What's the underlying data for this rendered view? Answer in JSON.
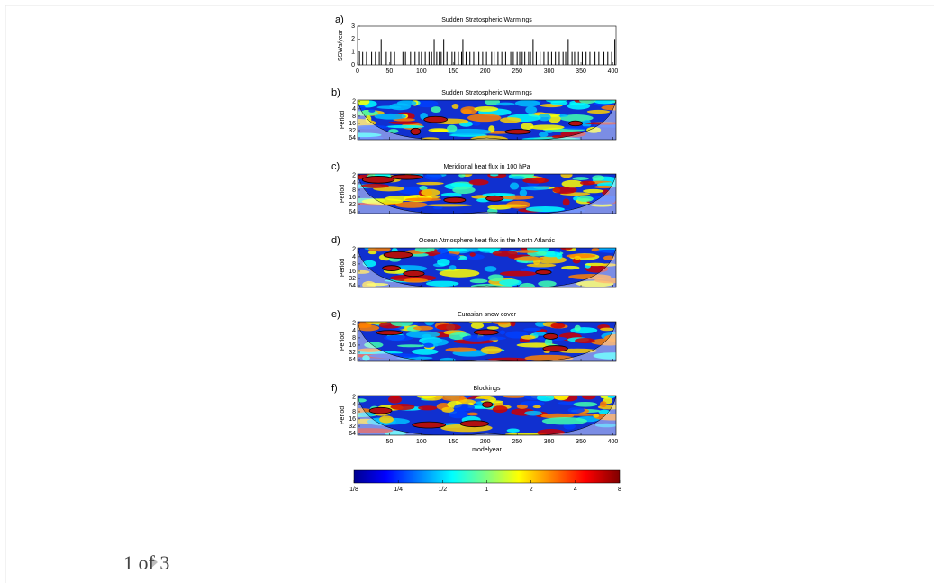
{
  "figure": {
    "panel_a": {
      "label": "a)",
      "title": "Sudden Stratospheric Warmings",
      "ylabel": "SSWs/year",
      "xlim": [
        0,
        405
      ],
      "ylim": [
        0,
        3
      ],
      "xticks": [
        0,
        50,
        100,
        150,
        200,
        250,
        300,
        350,
        400
      ],
      "yticks": [
        0,
        1,
        2,
        3
      ],
      "x": [
        3,
        8,
        14,
        22,
        28,
        34,
        37,
        45,
        52,
        58,
        71,
        75,
        83,
        90,
        96,
        100,
        106,
        112,
        116,
        120,
        124,
        128,
        131,
        135,
        140,
        148,
        152,
        158,
        163,
        165,
        170,
        176,
        182,
        190,
        196,
        202,
        210,
        214,
        220,
        226,
        232,
        240,
        244,
        250,
        254,
        258,
        262,
        268,
        271,
        275,
        280,
        286,
        292,
        298,
        304,
        310,
        316,
        322,
        326,
        330,
        336,
        340,
        346,
        352,
        358,
        364,
        372,
        378,
        386,
        392,
        398,
        403
      ],
      "values": [
        1,
        1,
        1,
        1,
        1,
        1,
        2,
        1,
        1,
        1,
        1,
        1,
        1,
        1,
        1,
        1,
        1,
        1,
        1,
        2,
        1,
        1,
        1,
        2,
        1,
        1,
        1,
        1,
        1,
        2,
        1,
        1,
        1,
        1,
        1,
        1,
        1,
        1,
        1,
        1,
        1,
        1,
        1,
        1,
        1,
        1,
        1,
        1,
        1,
        2,
        1,
        1,
        1,
        1,
        1,
        1,
        1,
        1,
        1,
        2,
        1,
        1,
        1,
        1,
        1,
        1,
        1,
        1,
        1,
        1,
        1,
        2
      ]
    },
    "wavelet_panels": [
      {
        "label": "b)",
        "title": "Sudden Stratospheric Warmings",
        "ylabel": "Period"
      },
      {
        "label": "c)",
        "title": "Meridional heat flux in 100 hPa",
        "ylabel": "Period"
      },
      {
        "label": "d)",
        "title": "Ocean Atmosphere heat flux in the North Atlantic",
        "ylabel": "Period"
      },
      {
        "label": "e)",
        "title": "Eurasian snow cover",
        "ylabel": "Period"
      },
      {
        "label": "f)",
        "title": "Blockings",
        "ylabel": "Period"
      }
    ],
    "period_ylim": [
      1.7,
      76
    ],
    "period_ticks": [
      2,
      4,
      8,
      16,
      32,
      64
    ],
    "xlim": [
      0,
      405
    ],
    "xticks": [
      50,
      100,
      150,
      200,
      250,
      300,
      350,
      400
    ],
    "xlabel": "modelyear",
    "colorbar": {
      "lim": [
        0.125,
        8
      ],
      "ticks": [
        {
          "value": 0.125,
          "label": "1/8"
        },
        {
          "value": 0.25,
          "label": "1/4"
        },
        {
          "value": 0.5,
          "label": "1/2"
        },
        1,
        2,
        4,
        8
      ]
    }
  },
  "pager": {
    "text": "1 of 3"
  }
}
